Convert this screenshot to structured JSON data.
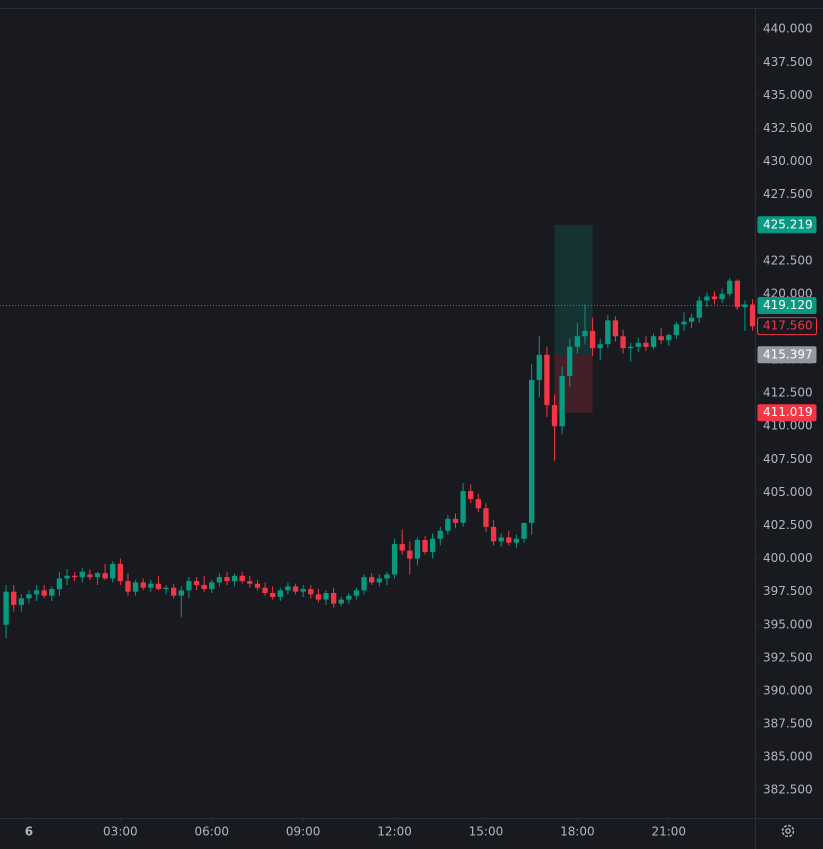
{
  "chart_data": {
    "type": "candlestick",
    "up_color": "#089981",
    "down_color": "#f23645",
    "xlim": [
      -0.95,
      23.83
    ],
    "ylim": [
      380.4,
      441.6
    ],
    "xticks": [
      {
        "value": 0,
        "label": "6"
      },
      {
        "value": 3,
        "label": "03:00"
      },
      {
        "value": 6,
        "label": "06:00"
      },
      {
        "value": 9,
        "label": "09:00"
      },
      {
        "value": 12,
        "label": "12:00"
      },
      {
        "value": 15,
        "label": "15:00"
      },
      {
        "value": 18,
        "label": "18:00"
      },
      {
        "value": 21,
        "label": "21:00"
      }
    ],
    "yticks": [
      {
        "value": 440,
        "label": "440.000"
      },
      {
        "value": 437.5,
        "label": "437.500"
      },
      {
        "value": 435,
        "label": "435.000"
      },
      {
        "value": 432.5,
        "label": "432.500"
      },
      {
        "value": 430,
        "label": "430.000"
      },
      {
        "value": 427.5,
        "label": "427.500"
      },
      {
        "value": 425,
        "label": "425.000"
      },
      {
        "value": 422.5,
        "label": "422.500"
      },
      {
        "value": 420,
        "label": "420.000"
      },
      {
        "value": 417.5,
        "label": "417.500"
      },
      {
        "value": 415,
        "label": "415.000"
      },
      {
        "value": 412.5,
        "label": "412.500"
      },
      {
        "value": 410,
        "label": "410.000"
      },
      {
        "value": 407.5,
        "label": "407.500"
      },
      {
        "value": 405,
        "label": "405.000"
      },
      {
        "value": 402.5,
        "label": "402.500"
      },
      {
        "value": 400,
        "label": "400.000"
      },
      {
        "value": 397.5,
        "label": "397.500"
      },
      {
        "value": 395,
        "label": "395.000"
      },
      {
        "value": 392.5,
        "label": "392.500"
      },
      {
        "value": 390,
        "label": "390.000"
      },
      {
        "value": 387.5,
        "label": "387.500"
      },
      {
        "value": 385,
        "label": "385.000"
      },
      {
        "value": 382.5,
        "label": "382.500"
      }
    ],
    "candles": {
      "x": [
        -0.75,
        -0.5,
        -0.25,
        0,
        0.25,
        0.5,
        0.75,
        1,
        1.25,
        1.5,
        1.75,
        2,
        2.25,
        2.5,
        2.75,
        3,
        3.25,
        3.5,
        3.75,
        4,
        4.25,
        4.5,
        4.75,
        5,
        5.25,
        5.5,
        5.75,
        6,
        6.25,
        6.5,
        6.75,
        7,
        7.25,
        7.5,
        7.75,
        8,
        8.25,
        8.5,
        8.75,
        9,
        9.25,
        9.5,
        9.75,
        10,
        10.25,
        10.5,
        10.75,
        11,
        11.25,
        11.5,
        11.75,
        12,
        12.25,
        12.5,
        12.75,
        13,
        13.25,
        13.5,
        13.75,
        14,
        14.25,
        14.5,
        14.75,
        15,
        15.25,
        15.5,
        15.75,
        16,
        16.25,
        16.5,
        16.75,
        17,
        17.25,
        17.5,
        17.75,
        18,
        18.25,
        18.5,
        18.75,
        19,
        19.25,
        19.5,
        19.75,
        20,
        20.25,
        20.5,
        20.75,
        21,
        21.25,
        21.5,
        21.75,
        22,
        22.25,
        22.5,
        22.75,
        23,
        23.25,
        23.5,
        23.75
      ],
      "open": [
        395.0,
        397.5,
        396.5,
        397.0,
        397.3,
        397.6,
        397.2,
        397.7,
        398.5,
        398.7,
        398.6,
        398.8,
        398.6,
        398.9,
        398.5,
        399.6,
        398.3,
        397.5,
        398.2,
        397.8,
        398.1,
        397.7,
        397.8,
        397.2,
        397.6,
        398.3,
        398.0,
        397.7,
        398.2,
        398.6,
        398.3,
        398.7,
        398.3,
        398.1,
        397.8,
        397.4,
        397.1,
        397.6,
        397.9,
        397.5,
        397.7,
        397.3,
        396.9,
        397.4,
        396.6,
        396.9,
        397.2,
        397.6,
        398.6,
        398.2,
        398.5,
        398.8,
        401.1,
        400.6,
        400.0,
        401.4,
        400.5,
        401.5,
        402.1,
        403.0,
        402.7,
        405.1,
        404.5,
        403.8,
        402.4,
        401.3,
        401.6,
        401.2,
        401.5,
        402.7,
        413.5,
        415.4,
        411.6,
        410.0,
        413.8,
        416.0,
        416.8,
        417.2,
        415.9,
        416.2,
        418.0,
        416.8,
        415.9,
        416.0,
        416.3,
        416.0,
        416.8,
        416.5,
        416.9,
        417.7,
        417.9,
        418.2,
        419.5,
        419.8,
        419.6,
        420.0,
        421.0,
        419.0,
        419.2
      ],
      "high": [
        398.0,
        398.0,
        397.3,
        397.6,
        398.0,
        398.0,
        397.9,
        399.0,
        399.2,
        399.0,
        399.3,
        399.2,
        399.0,
        399.6,
        399.8,
        400.0,
        398.9,
        398.4,
        398.5,
        398.4,
        398.7,
        398.0,
        398.1,
        397.9,
        398.6,
        398.6,
        398.7,
        398.4,
        398.9,
        399.0,
        398.9,
        399.0,
        398.7,
        398.4,
        398.2,
        397.9,
        397.8,
        398.2,
        398.1,
        398.0,
        398.0,
        397.7,
        397.6,
        397.8,
        397.1,
        397.4,
        397.8,
        398.8,
        398.9,
        398.8,
        399.0,
        401.5,
        402.2,
        401.3,
        401.6,
        401.7,
        401.9,
        402.4,
        403.3,
        403.4,
        405.7,
        405.6,
        404.9,
        404.2,
        402.9,
        401.9,
        402.1,
        401.8,
        402.5,
        414.7,
        416.8,
        416.0,
        412.4,
        414.5,
        416.6,
        417.8,
        419.2,
        418.2,
        416.6,
        418.4,
        418.3,
        417.3,
        416.3,
        416.7,
        416.8,
        417.0,
        417.4,
        417.0,
        417.9,
        418.6,
        418.5,
        419.8,
        420.1,
        420.2,
        420.4,
        421.2,
        421.1,
        419.5,
        419.6
      ],
      "low": [
        394.0,
        396.0,
        396.0,
        396.6,
        396.8,
        397.0,
        396.8,
        397.2,
        398.0,
        398.3,
        398.2,
        398.4,
        398.0,
        398.4,
        398.2,
        398.0,
        397.2,
        397.2,
        397.6,
        397.5,
        397.6,
        397.3,
        397.0,
        395.6,
        397.0,
        397.6,
        397.5,
        397.4,
        397.9,
        398.0,
        397.9,
        398.1,
        397.8,
        397.6,
        397.2,
        396.9,
        396.8,
        397.3,
        397.3,
        397.1,
        397.0,
        396.7,
        396.5,
        396.3,
        396.4,
        396.6,
        396.9,
        397.3,
        398.0,
        397.9,
        398.0,
        398.5,
        400.3,
        398.8,
        399.5,
        400.3,
        400.0,
        401.0,
        401.8,
        402.3,
        402.4,
        404.2,
        403.5,
        402.0,
        401.0,
        400.9,
        401.0,
        400.8,
        401.2,
        401.8,
        412.2,
        410.7,
        407.4,
        409.4,
        413.0,
        415.5,
        416.2,
        415.3,
        415.0,
        415.9,
        416.4,
        415.5,
        414.9,
        415.6,
        415.7,
        415.8,
        416.2,
        416.1,
        416.6,
        417.2,
        417.4,
        417.8,
        419.0,
        419.2,
        419.3,
        419.8,
        418.8,
        417.2,
        417.2
      ],
      "close": [
        397.5,
        396.5,
        397.0,
        397.3,
        397.6,
        397.2,
        397.7,
        398.5,
        398.7,
        398.6,
        399.0,
        398.6,
        398.9,
        398.5,
        399.6,
        398.3,
        397.5,
        398.2,
        397.8,
        398.1,
        397.7,
        397.8,
        397.2,
        397.6,
        398.3,
        398.0,
        397.7,
        398.2,
        398.6,
        398.3,
        398.7,
        398.3,
        398.1,
        397.8,
        397.4,
        397.1,
        397.6,
        397.9,
        397.5,
        397.7,
        397.3,
        396.9,
        397.4,
        396.6,
        396.9,
        397.2,
        397.6,
        398.6,
        398.2,
        398.5,
        398.8,
        401.1,
        400.6,
        400.0,
        401.4,
        400.5,
        401.5,
        402.1,
        403.0,
        402.7,
        405.1,
        404.5,
        403.8,
        402.4,
        401.3,
        401.6,
        401.2,
        401.5,
        402.7,
        413.5,
        415.4,
        411.6,
        410.0,
        413.8,
        416.0,
        416.8,
        417.2,
        415.9,
        416.2,
        418.0,
        416.8,
        415.9,
        416.0,
        416.3,
        416.0,
        416.8,
        416.5,
        416.9,
        417.7,
        417.9,
        418.2,
        419.5,
        419.8,
        419.6,
        420.0,
        421.0,
        419.0,
        419.2,
        417.56
      ]
    },
    "position": {
      "x_start": 17.25,
      "x_end": 18.5,
      "target": 425.219,
      "entry": 415.397,
      "stop": 411.019,
      "profit_color": "#089981",
      "loss_color": "#f23645"
    },
    "price_labels": [
      {
        "value": 425.219,
        "label": "425.219",
        "color": "#089981",
        "style": "filled"
      },
      {
        "value": 419.12,
        "label": "419.120",
        "color": "#089981",
        "style": "filled",
        "line": true
      },
      {
        "value": 417.56,
        "label": "417.560",
        "color": "#f23645",
        "style": "outline"
      },
      {
        "value": 415.397,
        "label": "415.397",
        "color": "#9598a1",
        "style": "filled"
      },
      {
        "value": 411.019,
        "label": "411.019",
        "color": "#f23645",
        "style": "filled"
      }
    ]
  }
}
